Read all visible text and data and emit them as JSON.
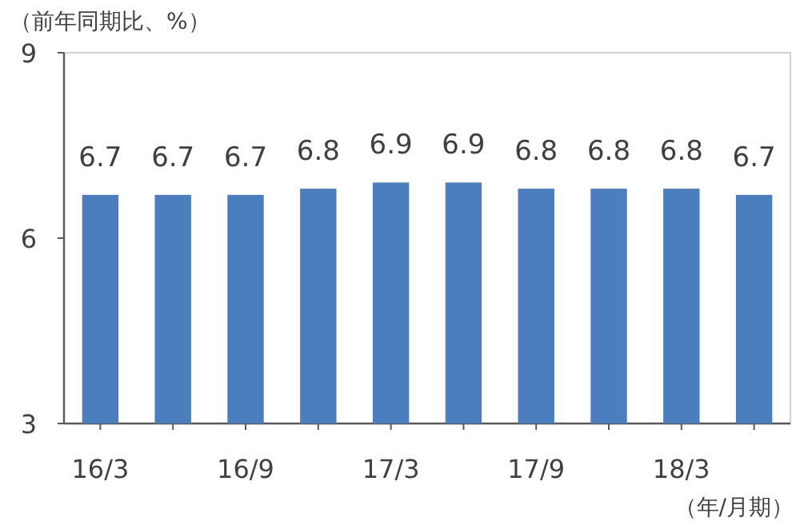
{
  "chart_data": {
    "type": "bar",
    "ylabel": "（前年同期比、%）",
    "xlabel": "（年/月期）",
    "categories": [
      "16/3",
      null,
      "16/9",
      null,
      "17/3",
      null,
      "17/9",
      null,
      "18/3",
      null
    ],
    "values": [
      6.7,
      6.7,
      6.7,
      6.8,
      6.9,
      6.9,
      6.8,
      6.8,
      6.8,
      6.7
    ],
    "color": "#4a7ebf",
    "ylim": [
      3,
      9
    ],
    "yticks": [
      3,
      6,
      9
    ],
    "data_labels": true,
    "grid": false
  }
}
